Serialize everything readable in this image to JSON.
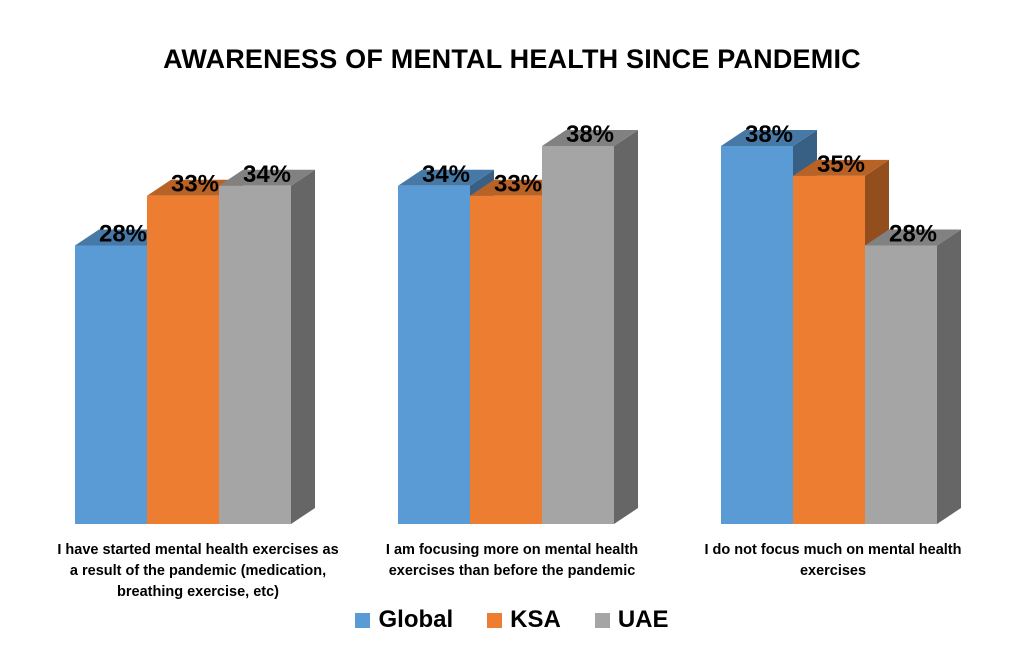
{
  "chart_data": {
    "type": "bar",
    "title": "AWARENESS OF MENTAL HEALTH SINCE PANDEMIC",
    "categories": [
      "I have started mental health exercises as a result of the pandemic (medication, breathing exercise, etc)",
      "I am focusing more on mental health exercises than before the pandemic",
      "I do not focus much on mental health exercises"
    ],
    "series": [
      {
        "name": "Global",
        "values": [
          28,
          34,
          38
        ],
        "labels": [
          "28%",
          "34%",
          "38%"
        ],
        "color": "#5b9bd5"
      },
      {
        "name": "KSA",
        "values": [
          33,
          33,
          35
        ],
        "labels": [
          "33%",
          "33%",
          "35%"
        ],
        "color": "#ed7d31"
      },
      {
        "name": "UAE",
        "values": [
          34,
          38,
          28
        ],
        "labels": [
          "34%",
          "38%",
          "28%"
        ],
        "color": "#a5a5a5"
      }
    ],
    "ylim": [
      0,
      38
    ],
    "value_unit": "%",
    "three_d": true,
    "grid": false,
    "legend_position": "bottom"
  }
}
